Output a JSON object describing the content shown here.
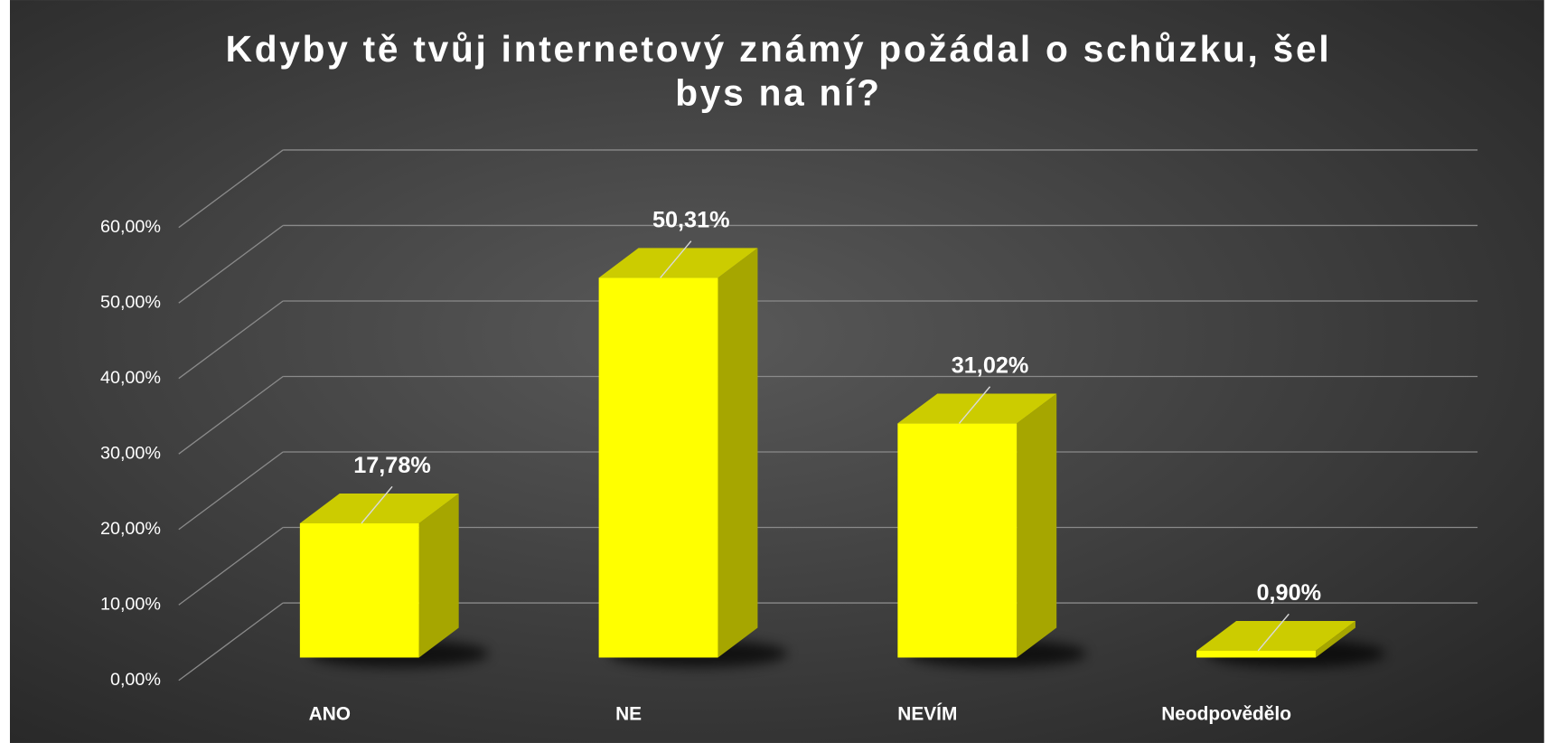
{
  "chart_data": {
    "type": "bar3d",
    "title": "Kdyby tě tvůj internetový známý požádal o schůzku, šel bys na ní?",
    "categories": [
      "ANO",
      "NE",
      "NEVÍM",
      "Neodpovědělo"
    ],
    "values": [
      17.78,
      50.31,
      31.02,
      0.9
    ],
    "value_labels": [
      "17,78%",
      "50,31%",
      "31,02%",
      "0,90%"
    ],
    "color": "#ffff00",
    "ylim": [
      0,
      60
    ],
    "yticks": [
      {
        "value": 0,
        "label": "0,00%"
      },
      {
        "value": 10,
        "label": "10,00%"
      },
      {
        "value": 20,
        "label": "20,00%"
      },
      {
        "value": 30,
        "label": "30,00%"
      },
      {
        "value": 40,
        "label": "40,00%"
      },
      {
        "value": 50,
        "label": "50,00%"
      },
      {
        "value": 60,
        "label": "60,00%"
      }
    ],
    "grid": true
  }
}
